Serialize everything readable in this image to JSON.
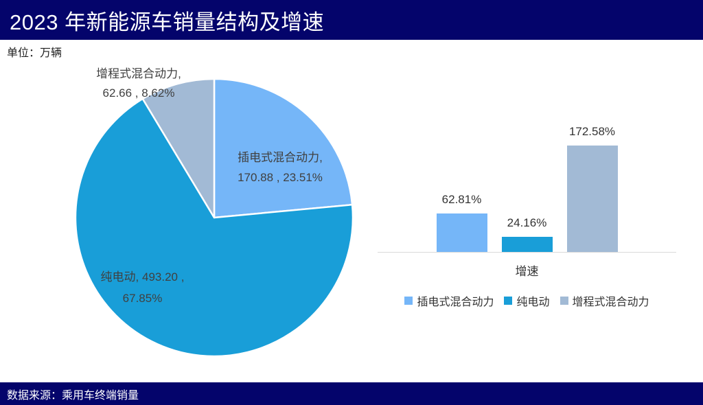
{
  "header": {
    "title": "2023 年新能源车销量结构及增速"
  },
  "canvas": {
    "unit_label": "单位：万辆"
  },
  "footer": {
    "source": "数据来源：乘用车终端销量"
  },
  "colors": {
    "navy_bar": "#04046B",
    "plugin_hybrid": "#75B6F8",
    "pure_electric": "#199ED8",
    "range_extended": "#A2BAD5",
    "axis_line": "#D9D9D9",
    "label_text": "#404040"
  },
  "chart_data": [
    {
      "type": "pie",
      "unit": "万辆",
      "categories": [
        "插电式混合动力",
        "纯电动",
        "增程式混合动力"
      ],
      "values": [
        170.88,
        493.2,
        62.66
      ],
      "percents": [
        23.51,
        67.85,
        8.62
      ],
      "colors": [
        "#75B6F8",
        "#199ED8",
        "#A2BAD5"
      ],
      "start_angle_deg": 0,
      "direction": "clockwise",
      "labels": [
        {
          "line1": "插电式混合动力,",
          "line2": "170.88 , 23.51%"
        },
        {
          "line1": "纯电动, 493.20 ,",
          "line2": "67.85%"
        },
        {
          "line1": "增程式混合动力,",
          "line2": "62.66 , 8.62%"
        }
      ]
    },
    {
      "type": "bar",
      "categories": [
        "插电式混合动力",
        "纯电动",
        "增程式混合动力"
      ],
      "values": [
        62.81,
        24.16,
        172.58
      ],
      "value_labels": [
        "62.81%",
        "24.16%",
        "172.58%"
      ],
      "xlabel": "增速",
      "colors": [
        "#75B6F8",
        "#199ED8",
        "#A2BAD5"
      ],
      "ylim": [
        0,
        190
      ],
      "grid": false,
      "legend_position": "bottom"
    }
  ],
  "legend": {
    "items": [
      {
        "label": "插电式混合动力",
        "color": "#75B6F8"
      },
      {
        "label": "纯电动",
        "color": "#199ED8"
      },
      {
        "label": "增程式混合动力",
        "color": "#A2BAD5"
      }
    ]
  }
}
